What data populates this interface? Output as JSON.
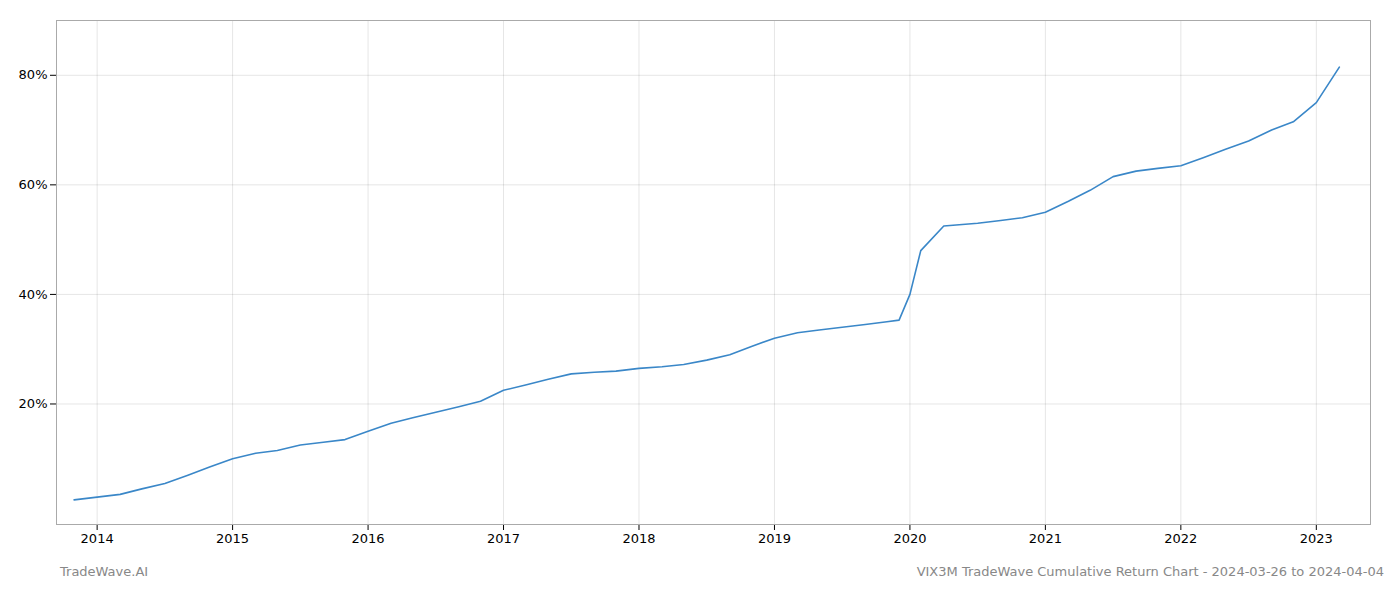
{
  "chart_data": {
    "type": "line",
    "annotations": [
      "TradeWave.AI",
      "VIX3M TradeWave Cumulative Return Chart - 2024-03-26 to 2024-04-04"
    ],
    "x": [
      2013.83,
      2014.0,
      2014.17,
      2014.33,
      2014.5,
      2014.67,
      2014.83,
      2015.0,
      2015.17,
      2015.33,
      2015.5,
      2015.67,
      2015.83,
      2016.0,
      2016.17,
      2016.33,
      2016.5,
      2016.67,
      2016.83,
      2017.0,
      2017.17,
      2017.33,
      2017.5,
      2017.67,
      2017.83,
      2018.0,
      2018.17,
      2018.33,
      2018.5,
      2018.67,
      2018.83,
      2019.0,
      2019.17,
      2019.33,
      2019.5,
      2019.67,
      2019.83,
      2019.92,
      2020.0,
      2020.08,
      2020.25,
      2020.5,
      2020.67,
      2020.83,
      2021.0,
      2021.17,
      2021.33,
      2021.5,
      2021.67,
      2021.83,
      2022.0,
      2022.17,
      2022.33,
      2022.5,
      2022.67,
      2022.83,
      2023.0,
      2023.17
    ],
    "values": [
      2.5,
      3.0,
      3.5,
      4.5,
      5.5,
      7.0,
      8.5,
      10.0,
      11.0,
      11.5,
      12.5,
      13.0,
      13.5,
      15.0,
      16.5,
      17.5,
      18.5,
      19.5,
      20.5,
      22.5,
      23.5,
      24.5,
      25.5,
      25.8,
      26.0,
      26.5,
      26.8,
      27.2,
      28.0,
      29.0,
      30.5,
      32.0,
      33.0,
      33.5,
      34.0,
      34.5,
      35.0,
      35.3,
      40.0,
      48.0,
      52.5,
      53.0,
      53.5,
      54.0,
      55.0,
      57.0,
      59.0,
      61.5,
      62.5,
      63.0,
      63.5,
      65.0,
      66.5,
      68.0,
      70.0,
      71.5,
      75.0,
      81.5
    ],
    "color": "#3a87c8",
    "xlim": [
      2013.7,
      2023.4
    ],
    "ylim": [
      -2,
      90
    ],
    "xticks": [
      2014,
      2015,
      2016,
      2017,
      2018,
      2019,
      2020,
      2021,
      2022,
      2023
    ],
    "yticks": [
      {
        "value": 20,
        "label": "20%"
      },
      {
        "value": 40,
        "label": "40%"
      },
      {
        "value": 60,
        "label": "60%"
      },
      {
        "value": 80,
        "label": "80%"
      }
    ],
    "grid": true
  }
}
